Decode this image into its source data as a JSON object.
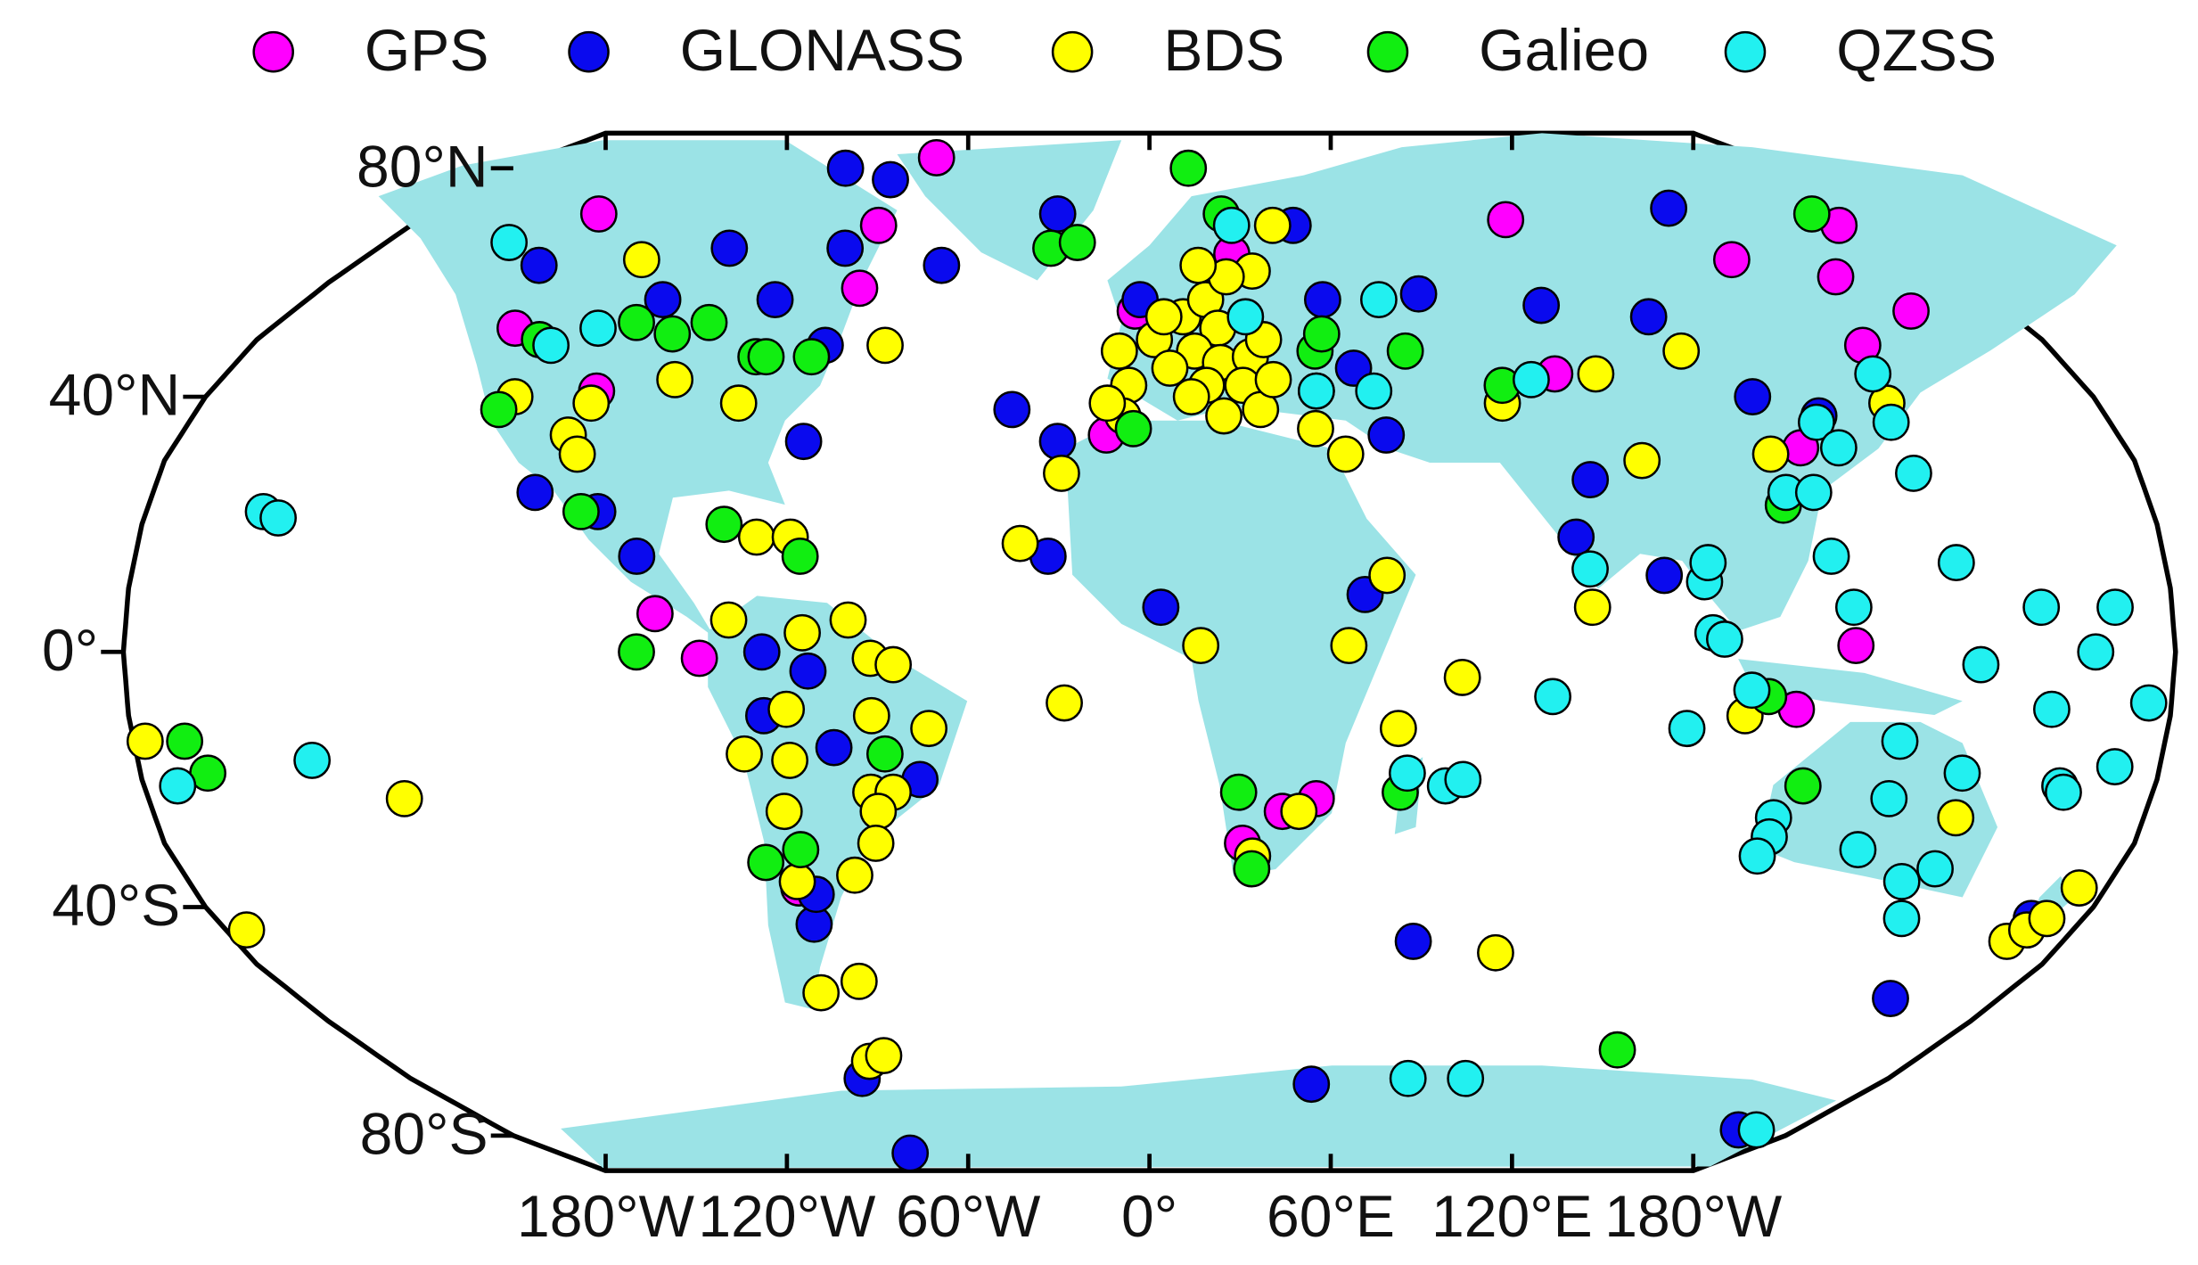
{
  "chart_data": {
    "type": "scatter",
    "xlim": [
      -180,
      180
    ],
    "ylim": [
      -90,
      90
    ],
    "xticks": [
      {
        "value": -180,
        "label": "180°W"
      },
      {
        "value": -120,
        "label": "120°W"
      },
      {
        "value": -60,
        "label": "60°W"
      },
      {
        "value": 0,
        "label": "0°"
      },
      {
        "value": 60,
        "label": "60°E"
      },
      {
        "value": 120,
        "label": "120°E"
      },
      {
        "value": 180,
        "label": "180°W"
      }
    ],
    "yticks": [
      {
        "value": 80,
        "label": "80°N"
      },
      {
        "value": 40,
        "label": "40°N"
      },
      {
        "value": 0,
        "label": "0°"
      },
      {
        "value": -40,
        "label": "40°S"
      },
      {
        "value": -80,
        "label": "80°S"
      }
    ],
    "legend": "top",
    "series": [
      {
        "name": "GPS",
        "color": "#ff00ff",
        "lon": [
          -63,
          -138,
          -66,
          -63,
          -130,
          -106,
          -87,
          -79,
          -66,
          88,
          133,
          168,
          152,
          160,
          143,
          120,
          124,
          114,
          79,
          -8,
          17,
          30,
          24,
          -3,
          19
        ],
        "lat": [
          83,
          72,
          70,
          59,
          52,
          41,
          6,
          -1,
          -37,
          71,
          64,
          70,
          61,
          55,
          49,
          32,
          1,
          -9,
          44,
          34,
          -30,
          -23,
          -25,
          55,
          65
        ]
      },
      {
        "name": "GLONASS",
        "color": "#0a0aee",
        "lon": [
          -86,
          -71,
          -47,
          -23,
          -71,
          -98,
          -138,
          -104,
          -80,
          -65,
          -64,
          -111,
          -99,
          -91,
          -68,
          -60,
          -68,
          -56,
          -41,
          -65,
          -63,
          -70,
          -73,
          -26,
          -17,
          -18,
          2,
          -2,
          35,
          37,
          58,
          40,
          44,
          38,
          83,
          132,
          104,
          115,
          80,
          76,
          91,
          126,
          52,
          40,
          157,
          164,
          170
        ],
        "lat": [
          80,
          78,
          63,
          72,
          66,
          66,
          63,
          57,
          57,
          49,
          33,
          25,
          22,
          15,
          0,
          -3,
          -10,
          -15,
          -20,
          -43,
          -38,
          -70,
          -85,
          38,
          33,
          15,
          7,
          57,
          70,
          57,
          58,
          45,
          34,
          9,
          56,
          73,
          54,
          40,
          27,
          18,
          12,
          37,
          -46,
          -71,
          -56,
          -79,
          -42
        ]
      },
      {
        "name": "BDS",
        "color": "#ffff00",
        "lon": [
          -116,
          -53,
          -92,
          -78,
          -121,
          -108,
          -105,
          -106,
          -74,
          -70,
          -64,
          -53,
          -61,
          -72,
          -64,
          -64,
          -49,
          -45,
          -49,
          -39,
          -66,
          -66,
          -55,
          -50,
          -46,
          -49,
          -50,
          -69,
          -60,
          -66,
          -62,
          -23,
          -16,
          -15,
          -178,
          -134,
          -176,
          9,
          35,
          42,
          44,
          55,
          27,
          19,
          69,
          78,
          90,
          106,
          87,
          67,
          114,
          105,
          140,
          146,
          169,
          171,
          173,
          175,
          -6,
          -4,
          -5,
          1,
          7,
          12,
          23,
          30,
          14,
          9,
          14,
          20,
          18,
          11,
          4,
          8,
          14,
          21,
          24,
          32,
          23,
          3,
          17,
          11,
          31,
          36,
          -8
        ],
        "lat": [
          64,
          49,
          43,
          39,
          40,
          34,
          31,
          39,
          5,
          18,
          18,
          5,
          3,
          -16,
          -17,
          -9,
          -1,
          -2,
          -10,
          -12,
          -25,
          -36,
          -35,
          -22,
          -22,
          -25,
          -30,
          -55,
          -53,
          -67,
          -66,
          17,
          28,
          -8,
          -14,
          -23,
          -44,
          1,
          1,
          12,
          -12,
          -4,
          -25,
          -32,
          -48,
          7,
          30,
          48,
          44,
          39,
          31,
          -10,
          39,
          -26,
          -46,
          -44,
          -42,
          -37,
          48,
          42,
          37,
          50,
          54,
          57,
          62,
          70,
          52,
          48,
          46,
          47,
          42,
          42,
          45,
          40,
          37,
          38,
          43,
          41,
          50,
          54,
          61,
          63,
          35,
          31,
          39
        ]
      },
      {
        "name": "Galieo",
        "color": "#11ee11",
        "lon": [
          11,
          -23,
          -17,
          18,
          -106,
          -97,
          -91,
          -123,
          -78,
          -76,
          -67,
          -123,
          -102,
          -76,
          -62,
          -90,
          -47,
          -71,
          -64,
          -171,
          -168,
          16,
          19,
          45,
          51,
          68,
          114,
          109,
          117,
          166,
          108,
          33,
          35,
          -3
        ],
        "lat": [
          80,
          66,
          67,
          72,
          53,
          51,
          53,
          50,
          47,
          47,
          47,
          38,
          22,
          20,
          15,
          0,
          -16,
          -33,
          -31,
          -14,
          -19,
          -22,
          -34,
          -22,
          48,
          42,
          23,
          -7,
          -21,
          72,
          -65,
          48,
          51,
          35
        ]
      },
      {
        "name": "QZSS",
        "color": "#22f0f0",
        "lon": [
          -151,
          -120,
          -113,
          -159,
          -156,
          -149,
          -174,
          20,
          20,
          32,
          49,
          43,
          46,
          53,
          56,
          63,
          77,
          71,
          78,
          74,
          95,
          98,
          99,
          99,
          101,
          106,
          113,
          113,
          112,
          115,
          120,
          121,
          125,
          124,
          127,
          141,
          139,
          139,
          143,
          133,
          133,
          130,
          145,
          141,
          146,
          145,
          146,
          157,
          170,
          166,
          159,
          163,
          164,
          172,
          176,
          169
        ],
        "lat": [
          67,
          49,
          52,
          22,
          21,
          -17,
          -21,
          70,
          54,
          41,
          57,
          41,
          -19,
          -21,
          -20,
          -70,
          -70,
          -7,
          13,
          43,
          -12,
          11,
          14,
          3,
          2,
          -6,
          -26,
          -29,
          -32,
          25,
          25,
          15,
          36,
          7,
          32,
          44,
          36,
          28,
          14,
          -14,
          -23,
          -31,
          -42,
          -36,
          -34,
          -19,
          -2,
          7,
          7,
          0,
          -9,
          -21,
          -22,
          -18,
          -8,
          -79
        ]
      }
    ]
  }
}
